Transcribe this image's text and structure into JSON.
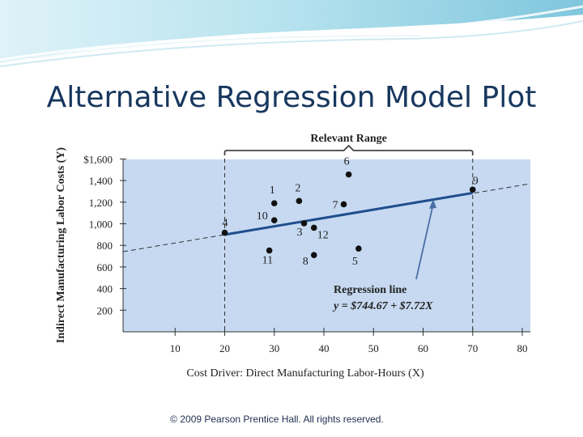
{
  "slide": {
    "title": "Alternative Regression Model Plot",
    "footer": "© 2009 Pearson Prentice Hall. All rights reserved."
  },
  "colors": {
    "plot_bg": "#c6d9f1",
    "regression_line": "#1f4e8c",
    "title": "#17375e",
    "header_teal": "#9fd3e6"
  },
  "chart_data": {
    "type": "scatter",
    "xlabel": "Cost Driver: Direct Manufacturing Labor-Hours (X)",
    "ylabel": "Indirect Manufacturing Labor Costs (Y)",
    "xlim": [
      0,
      80
    ],
    "ylim": [
      0,
      1600
    ],
    "xticks": [
      10,
      20,
      30,
      40,
      50,
      60,
      70,
      80
    ],
    "yticks": [
      200,
      400,
      600,
      800,
      1000,
      1200,
      1400,
      1600
    ],
    "ytick_labels": [
      "200",
      "400",
      "600",
      "800",
      "1,000",
      "1,200",
      "1,400",
      "$1,600"
    ],
    "points": [
      {
        "label": "1",
        "x": 30,
        "y": 1190
      },
      {
        "label": "2",
        "x": 35,
        "y": 1211
      },
      {
        "label": "3",
        "x": 36,
        "y": 1004
      },
      {
        "label": "4",
        "x": 20,
        "y": 917
      },
      {
        "label": "5",
        "x": 47,
        "y": 770
      },
      {
        "label": "6",
        "x": 45,
        "y": 1456
      },
      {
        "label": "7",
        "x": 44,
        "y": 1180
      },
      {
        "label": "8",
        "x": 38,
        "y": 710
      },
      {
        "label": "9",
        "x": 70,
        "y": 1316
      },
      {
        "label": "10",
        "x": 30,
        "y": 1032
      },
      {
        "label": "11",
        "x": 29,
        "y": 752
      },
      {
        "label": "12",
        "x": 38,
        "y": 963
      }
    ],
    "regression": {
      "intercept": 744.67,
      "slope": 7.72,
      "label": "Regression line",
      "equation": "y = $744.67 + $7.72X"
    },
    "relevant_range": {
      "label": "Relevant Range",
      "x_min": 20,
      "x_max": 70
    }
  }
}
